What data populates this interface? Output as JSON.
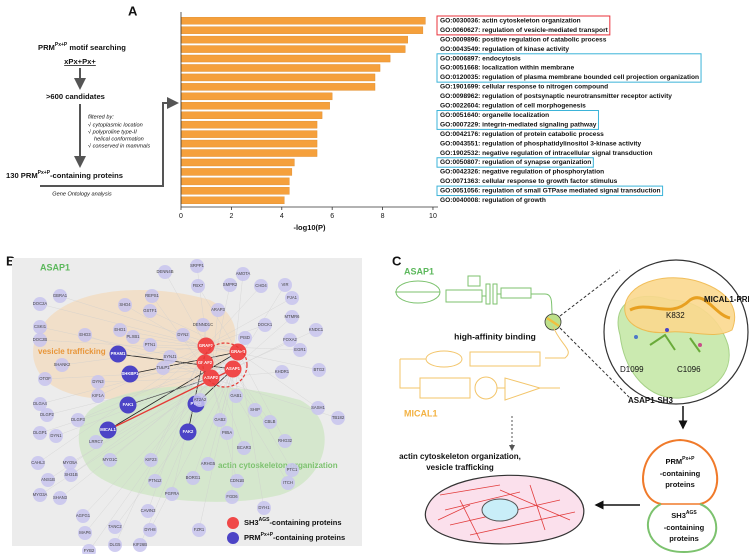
{
  "panels": [
    "A",
    "B",
    "C"
  ],
  "chart_data": {
    "type": "bar",
    "orientation": "horizontal",
    "categories": [
      "GO:0030036: actin cytoskeleton organization",
      "GO:0060627: regulation of vesicle-mediated transport",
      "GO:0009896: positive regulation of catabolic process",
      "GO:0043549: regulation of kinase activity",
      "GO:0006897: endocytosis",
      "GO:0051668: localization within membrane",
      "GO:0120035: regulation of plasma membrane bounded cell projection organization",
      "GO:1901699: cellular response to nitrogen compound",
      "GO:0098962: regulation of postsynaptic neurotransmitter receptor activity",
      "GO:0022604: regulation of cell morphogenesis",
      "GO:0051640: organelle localization",
      "GO:0007229: integrin-mediated signaling pathway",
      "GO:0042176: regulation of protein catabolic process",
      "GO:0043551: regulation of phosphatidylinositol 3-kinase activity",
      "GO:1902532: negative regulation of intracellular signal transduction",
      "GO:0050807: regulation of synapse organization",
      "GO:0042326: negative regulation of phosphorylation",
      "GO:0071363: cellular response to growth factor stimulus",
      "GO:0051056: regulation of small GTPase mediated signal transduction",
      "GO:0040008: regulation of growth"
    ],
    "values": [
      9.7,
      9.6,
      9.0,
      8.9,
      8.3,
      7.9,
      7.7,
      7.7,
      6.0,
      5.9,
      5.6,
      5.4,
      5.4,
      5.4,
      5.4,
      4.5,
      4.4,
      4.3,
      4.3,
      4.1
    ],
    "color": "#f5a03c",
    "box_colors": [
      "#e8303a",
      "#e8303a",
      null,
      null,
      "#3bb3d8",
      "#3bb3d8",
      "#3bb3d8",
      null,
      null,
      null,
      "#3bb3d8",
      "#3bb3d8",
      null,
      null,
      null,
      "#3bb3d8",
      null,
      null,
      "#3bb3d8",
      null
    ],
    "xlim": [
      0,
      10.2
    ],
    "xticks": [
      0,
      2,
      4,
      6,
      8,
      10
    ],
    "xlabel": "-log10(P)"
  },
  "flow": {
    "search": [
      "PRM",
      "Px+P",
      " motif searching"
    ],
    "motif": "xPx+Px+",
    "candidates": ">600 candidates",
    "filter_title": "filtered by:",
    "filters": [
      "√ cytoplasmic location",
      "√ polyproline type-II",
      "helical conformation",
      "√ conserved in mammals"
    ],
    "result": [
      "130 PRM",
      "Px+P",
      "-containing proteins"
    ],
    "analysis": "Gene Ontology analysis"
  },
  "network": {
    "regions": [
      "vesicle trafficking",
      "actin cytoskeleton organization"
    ],
    "nodes": [
      {
        "label": "GRAF1",
        "group": "sh3"
      },
      {
        "label": "GRAF2",
        "group": "sh3"
      },
      {
        "label": "GRAF3",
        "group": "sh3"
      },
      {
        "label": "ASAP1",
        "group": "sh3"
      },
      {
        "label": "ASAP2",
        "group": "sh3"
      },
      {
        "label": "PRAM1",
        "group": "prm"
      },
      {
        "label": "SHKBP1",
        "group": "prm"
      },
      {
        "label": "FAK1",
        "group": "prm"
      },
      {
        "label": "FAK2",
        "group": "prm"
      },
      {
        "label": "PYK2",
        "group": "prm"
      },
      {
        "label": "MICAL1",
        "group": "prm"
      },
      {
        "label": "SRPP1",
        "group": "other"
      },
      {
        "label": "DENN4B",
        "group": "other"
      },
      {
        "label": "AMOTA",
        "group": "other"
      },
      {
        "label": "FBX7",
        "group": "other"
      },
      {
        "label": "SMPR2",
        "group": "other"
      },
      {
        "label": "CHD4",
        "group": "other"
      },
      {
        "label": "VIR",
        "group": "other"
      },
      {
        "label": "GBRA1",
        "group": "other"
      },
      {
        "label": "REPS1",
        "group": "other"
      },
      {
        "label": "DOC2A",
        "group": "other"
      },
      {
        "label": "SHD4",
        "group": "other"
      },
      {
        "label": "GSTF1",
        "group": "other"
      },
      {
        "label": "ARAP3",
        "group": "other"
      },
      {
        "label": "PJA1",
        "group": "other"
      },
      {
        "label": "CSKI1",
        "group": "other"
      },
      {
        "label": "EHD1",
        "group": "other"
      },
      {
        "label": "DENND1C",
        "group": "other"
      },
      {
        "label": "DOCK1",
        "group": "other"
      },
      {
        "label": "MTMR6",
        "group": "other"
      },
      {
        "label": "DOC2B",
        "group": "other"
      },
      {
        "label": "EHD3",
        "group": "other"
      },
      {
        "label": "PTN1",
        "group": "other"
      },
      {
        "label": "DYN2",
        "group": "other"
      },
      {
        "label": "PISD",
        "group": "other"
      },
      {
        "label": "KNDC1",
        "group": "other"
      },
      {
        "label": "SHANK2",
        "group": "other"
      },
      {
        "label": "OTOF",
        "group": "other"
      },
      {
        "label": "PLXB1",
        "group": "other"
      },
      {
        "label": "SYNJ1",
        "group": "other"
      },
      {
        "label": "EGR1",
        "group": "other"
      },
      {
        "label": "FOXA2",
        "group": "other"
      },
      {
        "label": "DLGA4",
        "group": "other"
      },
      {
        "label": "DYN3",
        "group": "other"
      },
      {
        "label": "KIF1A",
        "group": "other"
      },
      {
        "label": "TULP1",
        "group": "other"
      },
      {
        "label": "GAB1",
        "group": "other"
      },
      {
        "label": "KHDR1",
        "group": "other"
      },
      {
        "label": "BTG2",
        "group": "other"
      },
      {
        "label": "DLGP2",
        "group": "other"
      },
      {
        "label": "DLGP3",
        "group": "other"
      },
      {
        "label": "DYN1",
        "group": "other"
      },
      {
        "label": "SHIP",
        "group": "other"
      },
      {
        "label": "CBLB",
        "group": "other"
      },
      {
        "label": "SASH1",
        "group": "other"
      },
      {
        "label": "DLGP1",
        "group": "other"
      },
      {
        "label": "LRRC7",
        "group": "other"
      },
      {
        "label": "GAB2",
        "group": "other"
      },
      {
        "label": "RHG32",
        "group": "other"
      },
      {
        "label": "TB182",
        "group": "other"
      },
      {
        "label": "CAHL3",
        "group": "other"
      },
      {
        "label": "MYO5A",
        "group": "other"
      },
      {
        "label": "MYO1C",
        "group": "other"
      },
      {
        "label": "P85A",
        "group": "other"
      },
      {
        "label": "BCAR3",
        "group": "other"
      },
      {
        "label": "PTC1",
        "group": "other"
      },
      {
        "label": "ANS1B",
        "group": "other"
      },
      {
        "label": "SHAN3",
        "group": "other"
      },
      {
        "label": "KIF23",
        "group": "other"
      },
      {
        "label": "ARHG5",
        "group": "other"
      },
      {
        "label": "BORG1",
        "group": "other"
      },
      {
        "label": "CDN1B",
        "group": "other"
      },
      {
        "label": "ITCH",
        "group": "other"
      },
      {
        "label": "MYO3A",
        "group": "other"
      },
      {
        "label": "SH31B",
        "group": "other"
      },
      {
        "label": "PTN12",
        "group": "other"
      },
      {
        "label": "PGFRA",
        "group": "other"
      },
      {
        "label": "FGD6",
        "group": "other"
      },
      {
        "label": "AGFG1",
        "group": "other"
      },
      {
        "label": "MAP6",
        "group": "other"
      },
      {
        "label": "CAVIN3",
        "group": "other"
      },
      {
        "label": "TANC2",
        "group": "other"
      },
      {
        "label": "DYH1",
        "group": "other"
      },
      {
        "label": "FYB2",
        "group": "other"
      },
      {
        "label": "DLG5",
        "group": "other"
      },
      {
        "label": "DYH8",
        "group": "other"
      },
      {
        "label": "FZR1",
        "group": "other"
      },
      {
        "label": "KIF26B",
        "group": "other"
      },
      {
        "label": "AT2A2",
        "group": "other"
      }
    ],
    "legend": [
      [
        "SH3",
        "AGS",
        "-containing proteins"
      ],
      [
        "PRM",
        "Px+P",
        "-containing proteins"
      ]
    ],
    "colors": {
      "sh3": "#f04848",
      "prm": "#4c44c6",
      "other": "#c8c4ee"
    }
  },
  "diagram": {
    "asap1": "ASAP1",
    "mical1": "MICAL1",
    "binding": "high-affinity binding",
    "mical1_prm": "MICAL1-PRM",
    "asap1_sh3": "ASAP1-SH3",
    "residues": [
      "K832",
      "D1099",
      "C1096"
    ],
    "outcome": [
      "actin cytoskeleton organization,",
      "vesicle trafficking"
    ],
    "prm_lobe": [
      "PRM",
      "Px+P",
      "-containing",
      "proteins"
    ],
    "sh3_lobe": [
      "SH3",
      "AGS",
      "-containing",
      "proteins"
    ]
  }
}
